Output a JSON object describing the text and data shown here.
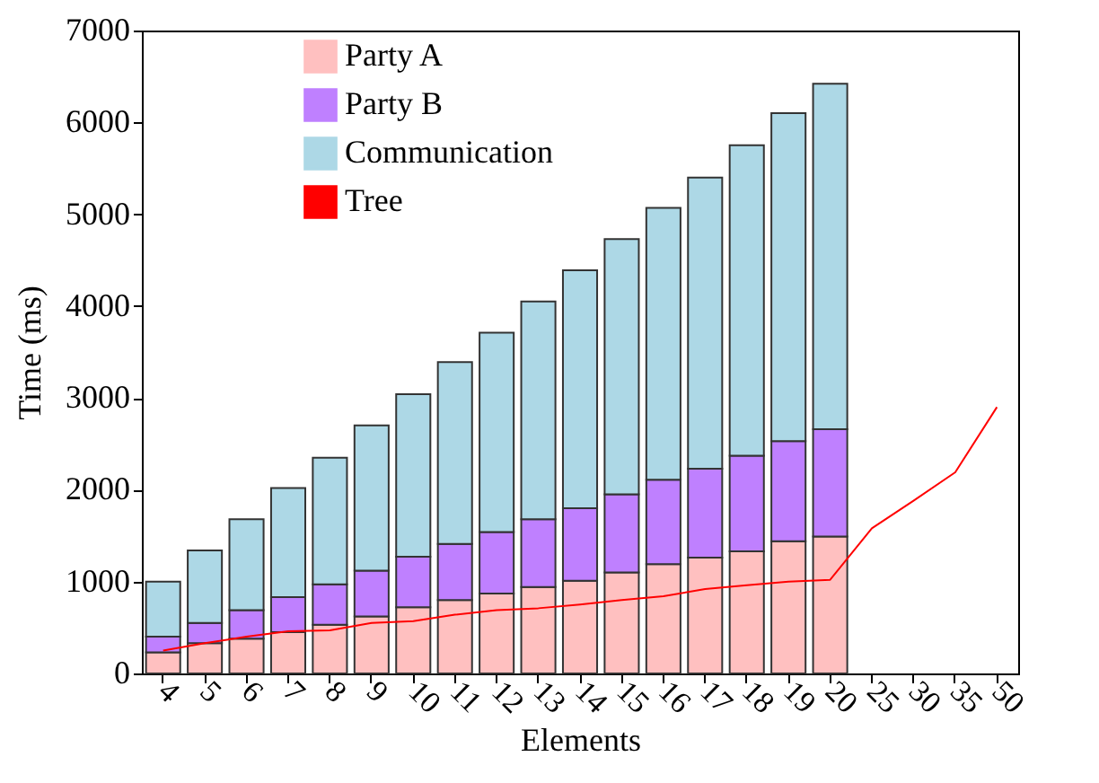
{
  "chart_data": {
    "type": "bar",
    "stacked": true,
    "xlabel": "Elements",
    "ylabel": "Time (ms)",
    "categories": [
      "4",
      "5",
      "6",
      "7",
      "8",
      "9",
      "10",
      "11",
      "12",
      "13",
      "14",
      "15",
      "16",
      "17",
      "18",
      "19",
      "20",
      "25",
      "30",
      "35",
      "50"
    ],
    "ylim": [
      0,
      7000
    ],
    "yticks": [
      0,
      1000,
      2000,
      3000,
      4000,
      5000,
      6000,
      7000
    ],
    "legend": "top",
    "grid": false,
    "series": [
      {
        "name": "Party A",
        "color": "#ffc0c0",
        "values": [
          230,
          330,
          380,
          450,
          530,
          620,
          720,
          800,
          870,
          940,
          1010,
          1100,
          1190,
          1260,
          1330,
          1440,
          1490,
          null,
          null,
          null,
          null
        ]
      },
      {
        "name": "Party B",
        "color": "#bf80ff",
        "values": [
          170,
          220,
          310,
          380,
          440,
          500,
          550,
          610,
          670,
          740,
          790,
          850,
          920,
          970,
          1040,
          1090,
          1170,
          null,
          null,
          null,
          null
        ]
      },
      {
        "name": "Communication",
        "color": "#add8e6",
        "values": [
          600,
          790,
          990,
          1190,
          1380,
          1580,
          1770,
          1980,
          2170,
          2370,
          2590,
          2780,
          2960,
          3170,
          3380,
          3570,
          3760,
          null,
          null,
          null,
          null
        ]
      },
      {
        "name": "Tree",
        "type": "line",
        "color": "#ff0000",
        "values": [
          250,
          330,
          400,
          460,
          470,
          550,
          570,
          640,
          690,
          710,
          750,
          800,
          840,
          920,
          960,
          1000,
          1020,
          1580,
          1880,
          2190,
          2900
        ]
      }
    ]
  }
}
